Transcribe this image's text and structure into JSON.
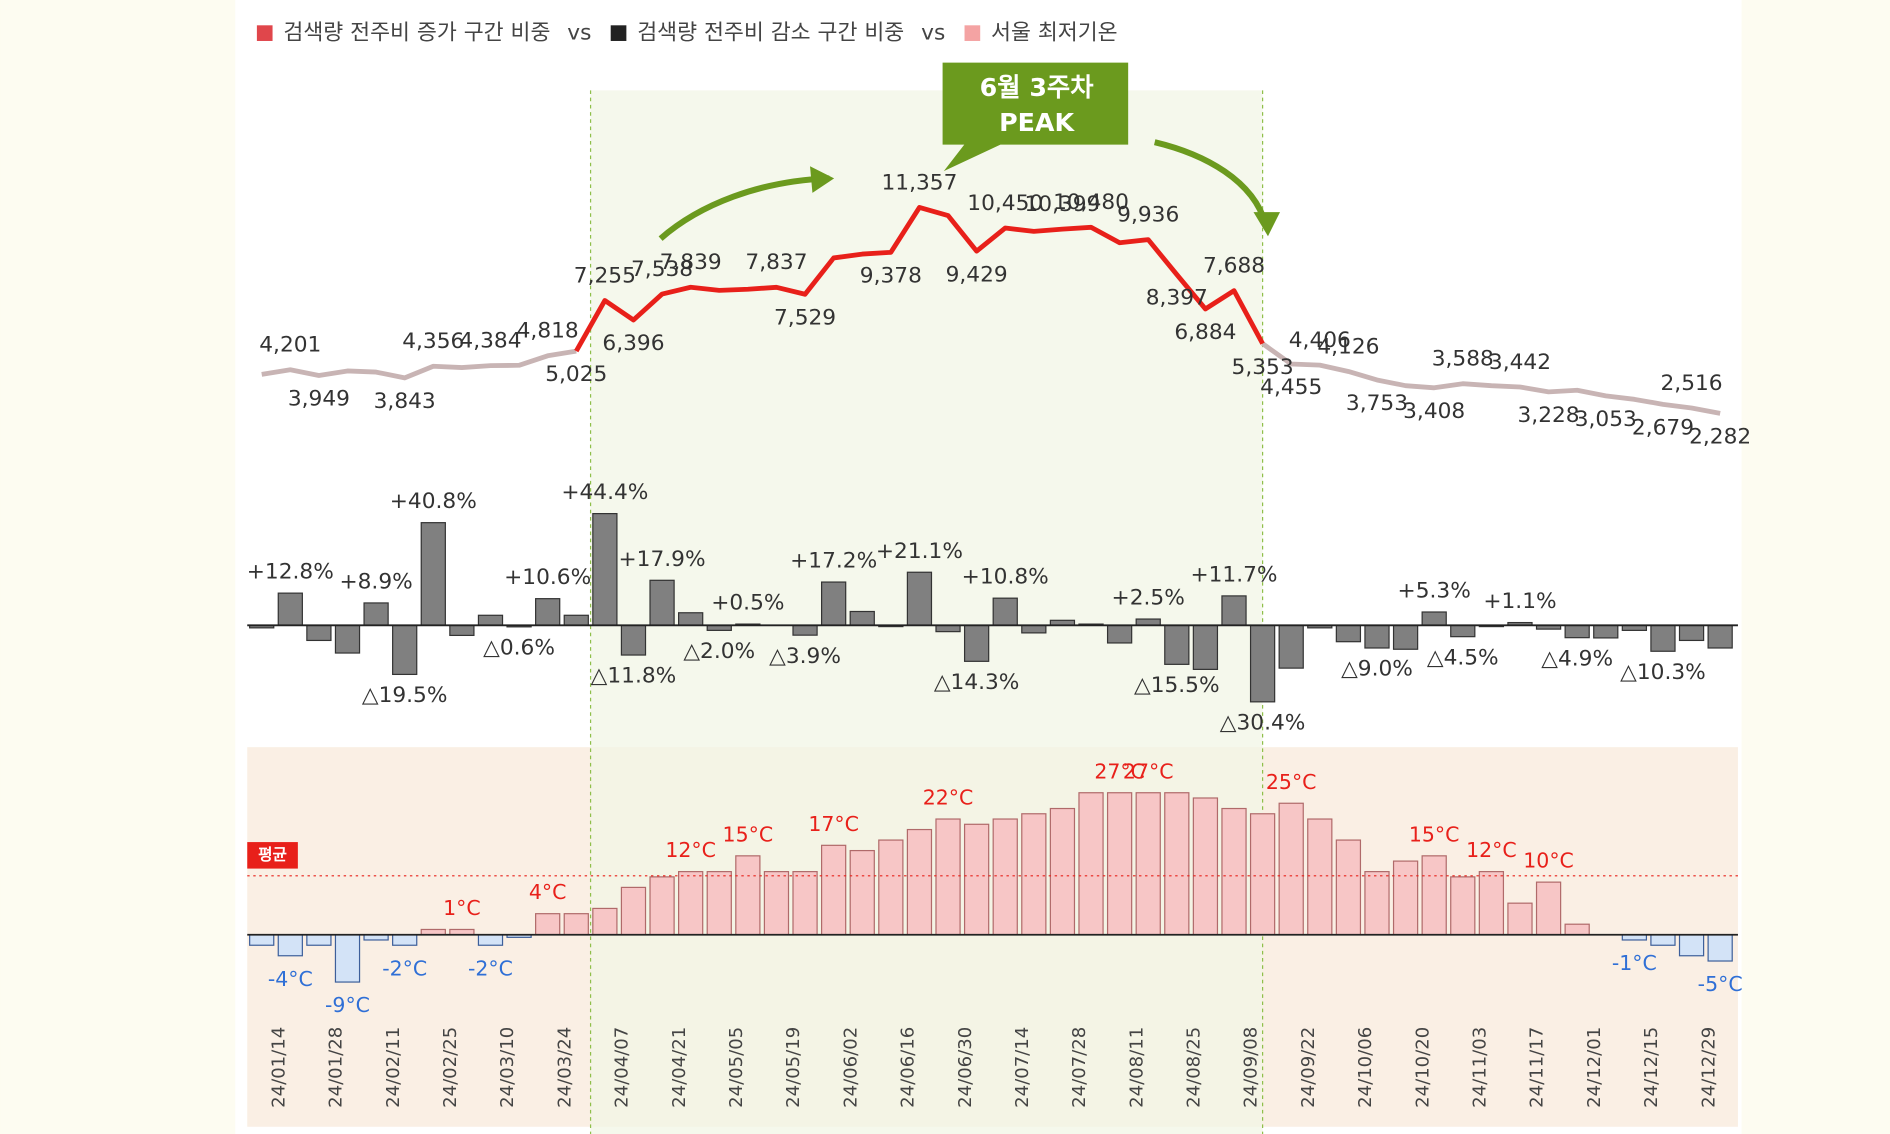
{
  "chart_data": {
    "type": "combo",
    "legend": {
      "separator": "vs",
      "items": [
        {
          "name": "검색량 전주비 증가 구간 비중",
          "color": "#e0464b"
        },
        {
          "name": "검색량 전주비 감소 구간 비중",
          "color": "#222222"
        },
        {
          "name": "서울 최저기온",
          "color": "#f4a3a3"
        }
      ]
    },
    "categories": [
      null,
      "24/01/14",
      null,
      "24/01/28",
      null,
      "24/02/11",
      null,
      "24/02/25",
      null,
      "24/03/10",
      null,
      "24/03/24",
      null,
      "24/04/07",
      null,
      "24/04/21",
      null,
      "24/05/05",
      null,
      "24/05/19",
      null,
      "24/06/02",
      null,
      "24/06/16",
      null,
      "24/06/30",
      null,
      "24/07/14",
      null,
      "24/07/28",
      null,
      "24/08/11",
      null,
      "24/08/25",
      null,
      "24/09/08",
      null,
      "24/09/22",
      null,
      "24/10/06",
      null,
      "24/10/20",
      null,
      "24/11/03",
      null,
      "24/11/17",
      null,
      "24/12/01",
      null,
      "24/12/15",
      null,
      "24/12/29"
    ],
    "highlight": {
      "start": 11,
      "end": 35,
      "color": "#e8201a",
      "fill": "#f1f6e6",
      "border": "#8fbf4a"
    },
    "annotation": {
      "lines": [
        "6월 3주차",
        "PEAK"
      ],
      "color": "#6b9a1e"
    },
    "panels": [
      {
        "type": "line",
        "color": "#c8b4b4",
        "ylim": [
          2000,
          12000
        ],
        "values": [
          4000,
          4201,
          3949,
          4150,
          4100,
          3843,
          4356,
          4300,
          4384,
          4400,
          4818,
          5025,
          7255,
          6396,
          7538,
          7839,
          7700,
          7750,
          7837,
          7529,
          9130,
          9300,
          9378,
          11357,
          11000,
          9429,
          10450,
          10300,
          10399,
          10480,
          9800,
          9936,
          8397,
          6884,
          7688,
          5353,
          4455,
          4406,
          4126,
          3753,
          3500,
          3408,
          3588,
          3500,
          3442,
          3228,
          3300,
          3053,
          2900,
          2679,
          2516,
          2282
        ],
        "value_labels": [
          null,
          "4,201",
          "3,949",
          null,
          null,
          "3,843",
          "4,356",
          null,
          "4,384",
          null,
          "4,818",
          "5,025",
          "7,255",
          "6,396",
          "7,538",
          "7,839",
          null,
          null,
          "7,837",
          "7,529",
          null,
          null,
          "9,378",
          "11,357",
          null,
          "9,429",
          "10,450",
          null,
          "10,399",
          "10,480",
          null,
          "9,936",
          "8,397",
          "6,884",
          "7,688",
          "5,353",
          "4,455",
          "4,406",
          "4,126",
          "3,753",
          null,
          "3,408",
          "3,588",
          null,
          "3,442",
          "3,228",
          null,
          "3,053",
          null,
          "2,679",
          "2,516",
          "2,282"
        ]
      },
      {
        "type": "bar",
        "color": "#808080",
        "ylim": [
          -35,
          50
        ],
        "values": [
          -1,
          12.8,
          -6,
          -11,
          8.9,
          -19.5,
          40.8,
          -4,
          4,
          -0.6,
          10.6,
          4,
          44.4,
          -11.8,
          17.9,
          5,
          -2,
          0.5,
          0,
          -3.9,
          17.2,
          5.5,
          -0.5,
          21.1,
          -2.5,
          -14.3,
          10.8,
          -3,
          2,
          0.5,
          -7,
          2.5,
          -15.5,
          -17.5,
          11.7,
          -30.4,
          -17,
          -1,
          -6.5,
          -9,
          -9.5,
          5.3,
          -4.5,
          -0.5,
          1.1,
          -1.5,
          -4.9,
          -5,
          -2,
          -10.3,
          -6,
          -9
        ],
        "value_labels": [
          null,
          "+12.8%",
          null,
          null,
          "+8.9%",
          "△19.5%",
          "+40.8%",
          null,
          null,
          "△0.6%",
          "+10.6%",
          null,
          "+44.4%",
          "△11.8%",
          "+17.9%",
          null,
          "△2.0%",
          "+0.5%",
          null,
          "△3.9%",
          "+17.2%",
          null,
          null,
          "+21.1%",
          null,
          "△14.3%",
          "+10.8%",
          null,
          null,
          null,
          null,
          "+2.5%",
          "△15.5%",
          null,
          "+11.7%",
          "△30.4%",
          null,
          null,
          null,
          "△9.0%",
          null,
          "+5.3%",
          "△4.5%",
          null,
          "+1.1%",
          null,
          "△4.9%",
          null,
          null,
          "△10.3%",
          null,
          null
        ]
      },
      {
        "type": "temp",
        "pos_color": "#f7c6c6",
        "neg_color": "#d3e3f7",
        "pos_text": "#e8201a",
        "neg_text": "#2f6fd6",
        "ylim": [
          -12,
          32
        ],
        "average": {
          "value": 11.2,
          "label": "평균"
        },
        "values": [
          -2,
          -4,
          -2,
          -9,
          -1,
          -2,
          1,
          1,
          -2,
          -0.5,
          4,
          4,
          5,
          9,
          11,
          12,
          12,
          15,
          12,
          12,
          17,
          16,
          18,
          20,
          22,
          21,
          22,
          23,
          24,
          27,
          27,
          27,
          27,
          26,
          24,
          23,
          25,
          22,
          18,
          12,
          14,
          15,
          11,
          12,
          6,
          10,
          2,
          0,
          -1,
          -2,
          -4,
          -5
        ],
        "value_labels": [
          null,
          "-4°C",
          null,
          "-9°C",
          null,
          "-2°C",
          null,
          "1°C",
          "-2°C",
          null,
          "4°C",
          null,
          null,
          null,
          null,
          "12°C",
          null,
          "15°C",
          null,
          null,
          "17°C",
          null,
          null,
          null,
          "22°C",
          null,
          null,
          null,
          null,
          null,
          "27°C",
          "27°C",
          null,
          null,
          null,
          null,
          "25°C",
          null,
          null,
          null,
          null,
          "15°C",
          null,
          "12°C",
          null,
          "10°C",
          null,
          null,
          "-1°C",
          null,
          null,
          "-5°C"
        ]
      }
    ]
  }
}
